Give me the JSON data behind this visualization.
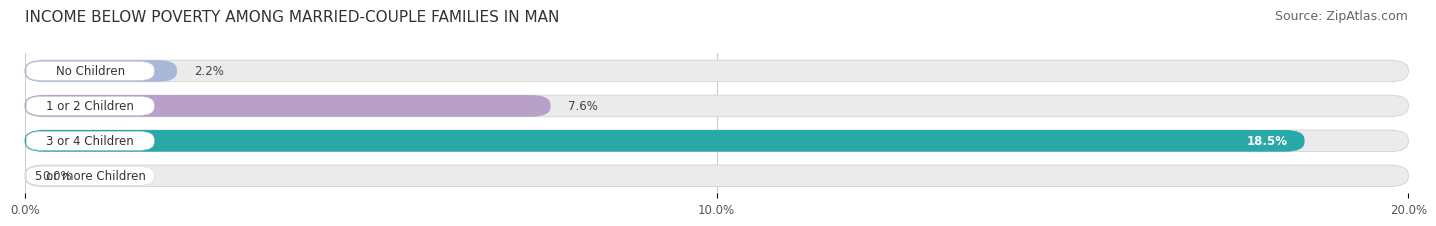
{
  "title": "INCOME BELOW POVERTY AMONG MARRIED-COUPLE FAMILIES IN MAN",
  "source": "Source: ZipAtlas.com",
  "categories": [
    "No Children",
    "1 or 2 Children",
    "3 or 4 Children",
    "5 or more Children"
  ],
  "values": [
    2.2,
    7.6,
    18.5,
    0.0
  ],
  "bar_colors": [
    "#a8b8d8",
    "#b8a0c8",
    "#29a8a8",
    "#b0b0d8"
  ],
  "value_label_colors": [
    "#444444",
    "#444444",
    "#ffffff",
    "#444444"
  ],
  "xlim": [
    0,
    20.0
  ],
  "xticks": [
    0.0,
    10.0,
    20.0
  ],
  "xticklabels": [
    "0.0%",
    "10.0%",
    "20.0%"
  ],
  "value_labels": [
    "2.2%",
    "7.6%",
    "18.5%",
    "0.0%"
  ],
  "bar_height": 0.62,
  "background_color": "#ffffff",
  "bar_bg_color": "#ebebeb",
  "title_fontsize": 11,
  "source_fontsize": 9,
  "label_fontsize": 8.5,
  "value_fontsize": 8.5
}
